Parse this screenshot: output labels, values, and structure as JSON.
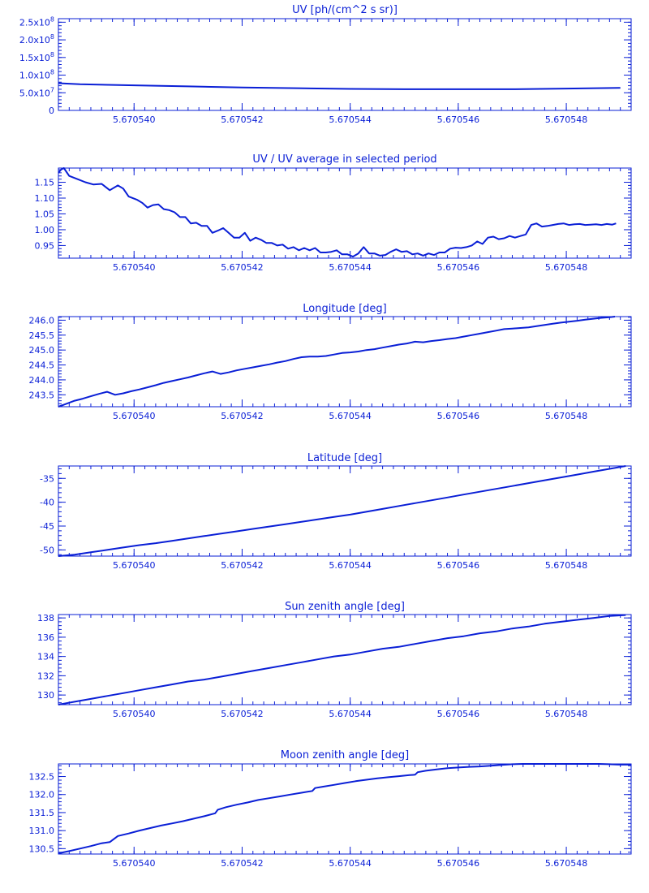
{
  "x_ticks": [
    "5.670540",
    "5.670542",
    "5.670544",
    "5.670546",
    "5.670548"
  ],
  "chart_data": [
    {
      "type": "line",
      "title": "UV [ph/(cm^2 s sr)]",
      "x": [
        5.670538,
        5.670539,
        5.67054,
        5.670541,
        5.670542,
        5.670543,
        5.670544,
        5.670545,
        5.670546,
        5.670547,
        5.670548,
        5.670549
      ],
      "series": [
        {
          "values": [
            77000000.0,
            74000000.0,
            71000000.0,
            68000000.0,
            65000000.0,
            63000000.0,
            61000000.0,
            60000000.0,
            60000000.0,
            60000000.0,
            62000000.0,
            64000000.0
          ]
        }
      ],
      "xlim": [
        5.6705386,
        5.6705492
      ],
      "ylim": [
        0,
        260000000.0
      ],
      "y_ticks": [
        {
          "value": 250000000.0,
          "base": "2.5x10",
          "exp": "8"
        },
        {
          "value": 200000000.0,
          "base": "2.0x10",
          "exp": "8"
        },
        {
          "value": 150000000.0,
          "base": "1.5x10",
          "exp": "8"
        },
        {
          "value": 100000000.0,
          "base": "1.0x10",
          "exp": "8"
        },
        {
          "value": 50000000.0,
          "base": "5.0x10",
          "exp": "7"
        },
        {
          "value": 0,
          "base": "0",
          "exp": ""
        }
      ]
    },
    {
      "type": "line",
      "title": "UV / UV average in selected period",
      "x": [
        5.6705386,
        5.67053865,
        5.6705387,
        5.6705388,
        5.67053895,
        5.6705391,
        5.67053925,
        5.6705394,
        5.67053955,
        5.6705397,
        5.6705398,
        5.6705399,
        5.67054005,
        5.67054015,
        5.67054025,
        5.67054035,
        5.67054045,
        5.67054055,
        5.67054065,
        5.67054075,
        5.67054085,
        5.67054095,
        5.67054105,
        5.67054115,
        5.67054125,
        5.67054135,
        5.67054145,
        5.67054155,
        5.67054165,
        5.67054175,
        5.67054185,
        5.67054195,
        5.67054205,
        5.67054215,
        5.67054225,
        5.67054235,
        5.67054245,
        5.67054255,
        5.67054265,
        5.67054275,
        5.67054285,
        5.67054295,
        5.67054305,
        5.67054315,
        5.67054325,
        5.67054335,
        5.67054345,
        5.67054355,
        5.67054365,
        5.67054375,
        5.67054385,
        5.67054395,
        5.67054405,
        5.67054415,
        5.67054425,
        5.67054435,
        5.67054445,
        5.67054455,
        5.67054465,
        5.67054475,
        5.67054485,
        5.67054495,
        5.67054505,
        5.67054515,
        5.67054525,
        5.67054535,
        5.67054545,
        5.67054555,
        5.67054565,
        5.67054575,
        5.67054585,
        5.67054595,
        5.67054605,
        5.67054615,
        5.67054625,
        5.67054635,
        5.67054645,
        5.67054655,
        5.67054665,
        5.67054675,
        5.67054685,
        5.67054695,
        5.67054705,
        5.67054715,
        5.67054725,
        5.67054735,
        5.67054745,
        5.67054755,
        5.67054765,
        5.67054775,
        5.67054785,
        5.67054795,
        5.67054805,
        5.67054815,
        5.67054825,
        5.67054835,
        5.67054845,
        5.67054855,
        5.67054865,
        5.67054875,
        5.67054885,
        5.67054892
      ],
      "series": [
        {
          "values": [
            1.18,
            1.19,
            1.195,
            1.17,
            1.16,
            1.15,
            1.143,
            1.145,
            1.125,
            1.14,
            1.13,
            1.105,
            1.095,
            1.085,
            1.07,
            1.078,
            1.08,
            1.065,
            1.062,
            1.055,
            1.04,
            1.04,
            1.02,
            1.022,
            1.012,
            1.012,
            0.99,
            0.997,
            1.005,
            0.99,
            0.975,
            0.975,
            0.99,
            0.965,
            0.975,
            0.968,
            0.958,
            0.958,
            0.95,
            0.953,
            0.94,
            0.945,
            0.935,
            0.942,
            0.935,
            0.942,
            0.928,
            0.928,
            0.93,
            0.935,
            0.922,
            0.922,
            0.915,
            0.925,
            0.945,
            0.925,
            0.925,
            0.918,
            0.92,
            0.93,
            0.938,
            0.93,
            0.932,
            0.922,
            0.925,
            0.918,
            0.925,
            0.92,
            0.928,
            0.928,
            0.94,
            0.943,
            0.942,
            0.945,
            0.95,
            0.963,
            0.955,
            0.975,
            0.978,
            0.97,
            0.973,
            0.98,
            0.975,
            0.98,
            0.985,
            1.015,
            1.02,
            1.01,
            1.012,
            1.015,
            1.018,
            1.02,
            1.015,
            1.017,
            1.018,
            1.015,
            1.016,
            1.017,
            1.015,
            1.018,
            1.016,
            1.02
          ]
        }
      ],
      "xlim": [
        5.6705386,
        5.6705492
      ],
      "ylim": [
        0.91,
        1.195
      ],
      "y_ticks": [
        {
          "value": 1.15,
          "base": "1.15",
          "exp": ""
        },
        {
          "value": 1.1,
          "base": "1.10",
          "exp": ""
        },
        {
          "value": 1.05,
          "base": "1.05",
          "exp": ""
        },
        {
          "value": 1.0,
          "base": "1.00",
          "exp": ""
        },
        {
          "value": 0.95,
          "base": "0.95",
          "exp": ""
        }
      ]
    },
    {
      "type": "line",
      "title": "Longitude [deg]",
      "x": [
        5.6705386,
        5.67053875,
        5.6705389,
        5.67053905,
        5.6705392,
        5.67053935,
        5.6705395,
        5.67053965,
        5.6705398,
        5.67053995,
        5.6705401,
        5.67054025,
        5.6705404,
        5.67054055,
        5.6705407,
        5.67054085,
        5.670541,
        5.67054115,
        5.6705413,
        5.67054145,
        5.6705416,
        5.67054175,
        5.6705419,
        5.67054205,
        5.6705422,
        5.67054235,
        5.6705425,
        5.67054265,
        5.6705428,
        5.67054295,
        5.6705431,
        5.67054325,
        5.6705434,
        5.67054355,
        5.6705437,
        5.67054385,
        5.670544,
        5.67054415,
        5.6705443,
        5.67054445,
        5.6705446,
        5.67054475,
        5.6705449,
        5.67054505,
        5.6705452,
        5.67054535,
        5.6705455,
        5.67054565,
        5.6705458,
        5.67054595,
        5.6705461,
        5.67054625,
        5.6705464,
        5.67054655,
        5.6705467,
        5.67054685,
        5.670547,
        5.67054715,
        5.6705473,
        5.67054745,
        5.6705476,
        5.67054775,
        5.6705479,
        5.67054805,
        5.6705482,
        5.67054835,
        5.6705485,
        5.67054865,
        5.6705488,
        5.6705489
      ],
      "series": [
        {
          "values": [
            243.1,
            243.2,
            243.3,
            243.37,
            243.45,
            243.53,
            243.6,
            243.5,
            243.55,
            243.62,
            243.68,
            243.75,
            243.82,
            243.9,
            243.96,
            244.02,
            244.08,
            244.15,
            244.22,
            244.28,
            244.2,
            244.25,
            244.32,
            244.37,
            244.42,
            244.47,
            244.52,
            244.58,
            244.63,
            244.7,
            244.76,
            244.78,
            244.78,
            244.8,
            244.85,
            244.9,
            244.92,
            244.95,
            245.0,
            245.03,
            245.08,
            245.13,
            245.18,
            245.22,
            245.28,
            245.26,
            245.3,
            245.33,
            245.37,
            245.4,
            245.45,
            245.5,
            245.55,
            245.6,
            245.65,
            245.7,
            245.72,
            245.74,
            245.76,
            245.8,
            245.84,
            245.88,
            245.92,
            245.95,
            245.98,
            246.02,
            246.05,
            246.08,
            246.1,
            246.12
          ]
        }
      ],
      "xlim": [
        5.6705386,
        5.6705492
      ],
      "ylim": [
        243.1,
        246.12
      ],
      "y_ticks": [
        {
          "value": 246.0,
          "base": "246.0",
          "exp": ""
        },
        {
          "value": 245.5,
          "base": "245.5",
          "exp": ""
        },
        {
          "value": 245.0,
          "base": "245.0",
          "exp": ""
        },
        {
          "value": 244.5,
          "base": "244.5",
          "exp": ""
        },
        {
          "value": 244.0,
          "base": "244.0",
          "exp": ""
        },
        {
          "value": 243.5,
          "base": "243.5",
          "exp": ""
        }
      ]
    },
    {
      "type": "line",
      "title": "Latitude [deg]",
      "x": [
        5.6705386,
        5.6705389,
        5.6705392,
        5.6705395,
        5.6705398,
        5.6705401,
        5.6705404,
        5.6705407,
        5.670541,
        5.6705413,
        5.6705416,
        5.6705419,
        5.6705422,
        5.6705425,
        5.6705428,
        5.6705431,
        5.6705434,
        5.6705437,
        5.670544,
        5.6705443,
        5.6705446,
        5.6705449,
        5.6705452,
        5.6705455,
        5.6705458,
        5.6705461,
        5.6705464,
        5.6705467,
        5.670547,
        5.6705473,
        5.6705476,
        5.6705479,
        5.6705482,
        5.6705485,
        5.6705488,
        5.6705491
      ],
      "series": [
        {
          "values": [
            -51.3,
            -51.0,
            -50.5,
            -50.0,
            -49.5,
            -49.0,
            -48.6,
            -48.1,
            -47.6,
            -47.1,
            -46.6,
            -46.1,
            -45.6,
            -45.1,
            -44.6,
            -44.1,
            -43.6,
            -43.1,
            -42.6,
            -42.0,
            -41.4,
            -40.8,
            -40.2,
            -39.6,
            -39.0,
            -38.4,
            -37.8,
            -37.2,
            -36.6,
            -36.0,
            -35.4,
            -34.8,
            -34.2,
            -33.6,
            -33.0,
            -32.4
          ]
        }
      ],
      "xlim": [
        5.6705386,
        5.6705492
      ],
      "ylim": [
        -51.3,
        -32.4
      ],
      "y_ticks": [
        {
          "value": -35,
          "base": "-35",
          "exp": ""
        },
        {
          "value": -40,
          "base": "-40",
          "exp": ""
        },
        {
          "value": -45,
          "base": "-45",
          "exp": ""
        },
        {
          "value": -50,
          "base": "-50",
          "exp": ""
        }
      ]
    },
    {
      "type": "line",
      "title": "Sun zenith angle [deg]",
      "x": [
        5.6705386,
        5.6705389,
        5.6705392,
        5.6705395,
        5.6705398,
        5.6705401,
        5.6705404,
        5.6705407,
        5.670541,
        5.6705413,
        5.6705416,
        5.6705419,
        5.6705422,
        5.6705425,
        5.6705428,
        5.6705431,
        5.6705434,
        5.6705437,
        5.670544,
        5.6705443,
        5.6705446,
        5.6705449,
        5.6705452,
        5.6705455,
        5.6705458,
        5.6705461,
        5.6705464,
        5.6705467,
        5.670547,
        5.6705473,
        5.6705476,
        5.6705479,
        5.6705482,
        5.6705485,
        5.6705488,
        5.6705491
      ],
      "series": [
        {
          "values": [
            129.0,
            129.3,
            129.6,
            129.9,
            130.2,
            130.5,
            130.8,
            131.1,
            131.4,
            131.6,
            131.9,
            132.2,
            132.5,
            132.8,
            133.1,
            133.4,
            133.7,
            134.0,
            134.2,
            134.5,
            134.8,
            135.0,
            135.3,
            135.6,
            135.9,
            136.1,
            136.4,
            136.6,
            136.9,
            137.1,
            137.4,
            137.6,
            137.8,
            138.0,
            138.2,
            138.3
          ]
        }
      ],
      "xlim": [
        5.6705386,
        5.6705492
      ],
      "ylim": [
        129.0,
        138.35
      ],
      "y_ticks": [
        {
          "value": 138,
          "base": "138",
          "exp": ""
        },
        {
          "value": 136,
          "base": "136",
          "exp": ""
        },
        {
          "value": 134,
          "base": "134",
          "exp": ""
        },
        {
          "value": 132,
          "base": "132",
          "exp": ""
        },
        {
          "value": 130,
          "base": "130",
          "exp": ""
        }
      ]
    },
    {
      "type": "line",
      "title": "Moon zenith angle [deg]",
      "x": [
        5.6705386,
        5.6705388,
        5.670539,
        5.6705392,
        5.6705394,
        5.67053955,
        5.6705397,
        5.6705399,
        5.6705401,
        5.6705403,
        5.6705405,
        5.6705407,
        5.6705409,
        5.6705411,
        5.6705413,
        5.6705415,
        5.67054155,
        5.6705417,
        5.6705419,
        5.6705421,
        5.6705423,
        5.6705425,
        5.6705427,
        5.6705429,
        5.6705431,
        5.6705433,
        5.67054335,
        5.6705435,
        5.6705437,
        5.6705439,
        5.6705441,
        5.6705443,
        5.6705445,
        5.6705447,
        5.6705449,
        5.6705451,
        5.6705452,
        5.67054525,
        5.6705454,
        5.6705456,
        5.6705458,
        5.670546,
        5.6705462,
        5.6705464,
        5.6705466,
        5.6705468,
        5.670547,
        5.6705472,
        5.6705474,
        5.6705476,
        5.6705478,
        5.670548,
        5.6705482,
        5.6705484,
        5.6705486,
        5.6705488,
        5.670549,
        5.6705492
      ],
      "series": [
        {
          "values": [
            130.37,
            130.43,
            130.5,
            130.57,
            130.65,
            130.68,
            130.85,
            130.92,
            131.0,
            131.07,
            131.14,
            131.2,
            131.26,
            131.33,
            131.4,
            131.48,
            131.58,
            131.65,
            131.72,
            131.78,
            131.85,
            131.9,
            131.95,
            132.0,
            132.05,
            132.1,
            132.18,
            132.22,
            132.27,
            132.32,
            132.37,
            132.41,
            132.45,
            132.48,
            132.51,
            132.54,
            132.55,
            132.62,
            132.66,
            132.7,
            132.73,
            132.75,
            132.77,
            132.78,
            132.8,
            132.82,
            132.84,
            132.86,
            132.87,
            132.88,
            132.88,
            132.87,
            132.87,
            132.86,
            132.85,
            132.84,
            132.83,
            132.83
          ]
        }
      ],
      "xlim": [
        5.6705386,
        5.6705492
      ],
      "ylim": [
        130.35,
        132.85
      ],
      "y_ticks": [
        {
          "value": 132.5,
          "base": "132.5",
          "exp": ""
        },
        {
          "value": 132.0,
          "base": "132.0",
          "exp": ""
        },
        {
          "value": 131.5,
          "base": "131.5",
          "exp": ""
        },
        {
          "value": 131.0,
          "base": "131.0",
          "exp": ""
        },
        {
          "value": 130.5,
          "base": "130.5",
          "exp": ""
        }
      ]
    }
  ],
  "colors": {
    "ink": "#0a1fd6",
    "background": "#ffffff"
  }
}
